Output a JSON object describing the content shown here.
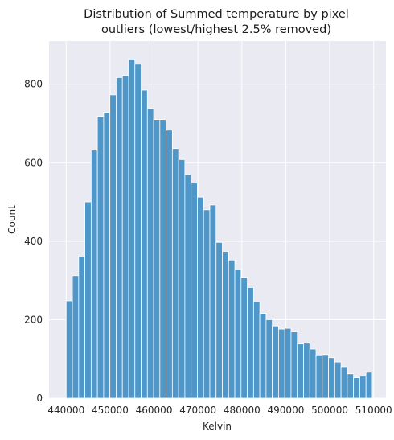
{
  "chart_data": {
    "type": "bar",
    "title_lines": [
      "Distribution of Summed temperature by pixel",
      "outliers (lowest/highest 2.5% removed)"
    ],
    "xlabel": "Kelvin",
    "ylabel": "Count",
    "xlim": [
      436100,
      512800
    ],
    "ylim": [
      0,
      910
    ],
    "xticks": [
      440000,
      450000,
      460000,
      470000,
      480000,
      490000,
      500000,
      510000
    ],
    "yticks": [
      0,
      200,
      400,
      600,
      800
    ],
    "grid": true,
    "background": "#eaeaf2",
    "bar_color": "#4f97c8",
    "bin_start": 440000,
    "bin_width": 1422,
    "values": [
      248,
      312,
      362,
      500,
      632,
      718,
      728,
      773,
      817,
      822,
      864,
      851,
      785,
      738,
      710,
      710,
      683,
      636,
      608,
      570,
      548,
      512,
      480,
      492,
      397,
      374,
      352,
      327,
      308,
      282,
      245,
      216,
      200,
      184,
      176,
      178,
      169,
      138,
      140,
      125,
      110,
      111,
      103,
      92,
      80,
      62,
      52,
      56,
      66
    ]
  }
}
